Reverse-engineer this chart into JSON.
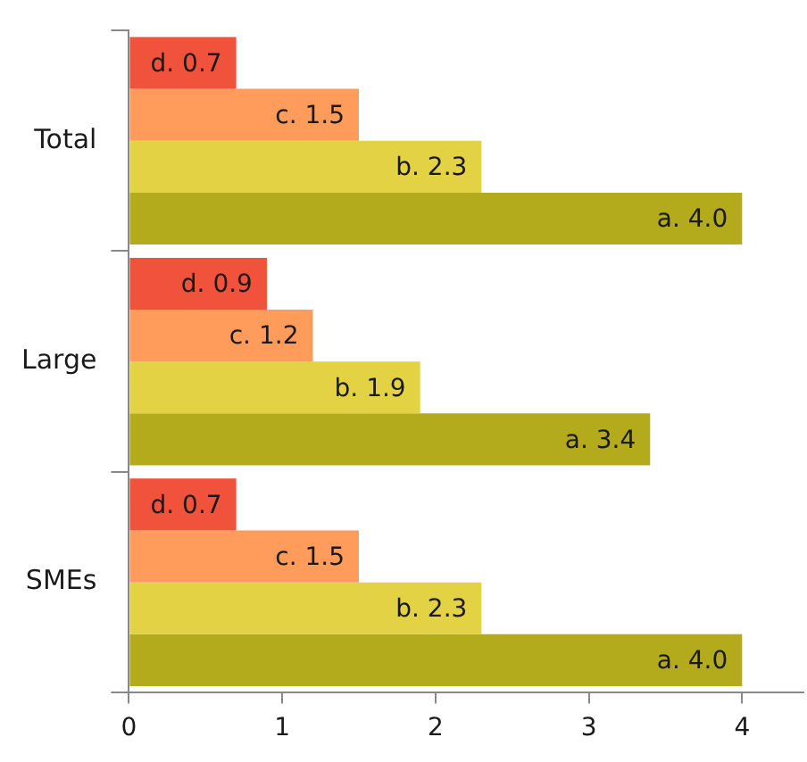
{
  "chart_data": {
    "type": "bar",
    "orientation": "horizontal",
    "categories": [
      "Total",
      "Large",
      "SMEs"
    ],
    "series": [
      {
        "color": "#f0523c",
        "values": [
          0.7,
          0.9,
          0.7
        ],
        "value_labels": [
          "d. 0.7",
          "d. 0.9",
          "d. 0.7"
        ]
      },
      {
        "color": "#ff9c5c",
        "values": [
          1.5,
          1.2,
          1.5
        ],
        "value_labels": [
          "c. 1.5",
          "c. 1.2",
          "c. 1.5"
        ]
      },
      {
        "color": "#e2d244",
        "values": [
          2.3,
          1.9,
          2.3
        ],
        "value_labels": [
          "b. 2.3",
          "b. 1.9",
          "b. 2.3"
        ]
      },
      {
        "color": "#b3aa1c",
        "values": [
          4.0,
          3.4,
          4.0
        ],
        "value_labels": [
          "a. 4.0",
          "a. 3.4",
          "a. 4.0"
        ]
      }
    ],
    "xlim": [
      0,
      4.4
    ],
    "xticks": [
      0,
      1,
      2,
      3,
      4
    ],
    "grid": false,
    "legend": false
  }
}
